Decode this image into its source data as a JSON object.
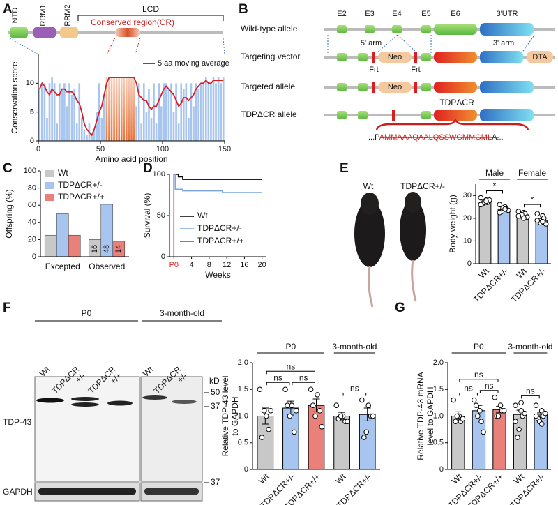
{
  "panel_labels": [
    "A",
    "B",
    "C",
    "D",
    "E",
    "F",
    "G"
  ],
  "domain_diagram": {
    "domains": [
      "NTD",
      "RRM1",
      "RRM2"
    ],
    "lcd": "LCD",
    "conserved_region": "Conserved region(CR)"
  },
  "targeting": {
    "exons": [
      "E2",
      "E3",
      "E4",
      "E5",
      "E6",
      "3'UTR"
    ],
    "rows": [
      "Wild-type allele",
      "Targeting vector",
      "Targeted allele",
      "TDPΔCR allele"
    ],
    "arms": [
      "5' arm",
      "3' arm"
    ],
    "neo": "Neo",
    "frt": "Frt",
    "dta": "DTA",
    "cr_label": "TDPΔCR",
    "sequence": [
      "...P",
      "AMMAAAQAALQSSWGMMGML",
      "A..."
    ]
  },
  "mice": {
    "labels": [
      "Wt",
      "TDPΔCR+/-"
    ]
  },
  "blot": {
    "groups": [
      "P0",
      "3-month-old"
    ],
    "lanes": [
      [
        "Wt"
      ],
      [
        "TDPΔCR",
        "+/-"
      ],
      [
        "TDPΔCR",
        "+/+"
      ],
      [
        "Wt"
      ],
      [
        "TDPΔCR",
        "+/-"
      ]
    ],
    "unit": "kD",
    "markers": [
      50,
      37
    ],
    "gapdh_marker": 37,
    "proteins": [
      "TDP-43",
      "GAPDH"
    ]
  },
  "chart_data": [
    {
      "type": "barline",
      "xlabel": "Amino acid position",
      "ylabel": "Conservation score",
      "x": [
        1,
        3,
        5,
        7,
        9,
        11,
        13,
        15,
        17,
        19,
        21,
        23,
        25,
        27,
        29,
        31,
        33,
        35,
        37,
        39,
        41,
        43,
        45,
        47,
        49,
        51,
        53,
        55,
        57,
        59,
        61,
        63,
        65,
        67,
        69,
        71,
        73,
        75,
        77,
        79,
        81,
        83,
        85,
        87,
        89,
        91,
        93,
        95,
        97,
        99,
        101,
        103,
        105,
        107,
        109,
        111,
        113,
        115,
        117,
        119,
        121,
        123,
        125,
        127,
        129,
        131,
        133,
        135,
        137,
        139,
        141,
        143,
        145,
        147,
        149
      ],
      "series": [
        {
          "color": "#a8c5f0",
          "values": [
            9,
            10,
            10,
            4,
            10,
            11,
            10,
            3,
            10,
            9,
            10,
            6,
            10,
            8,
            9,
            3,
            10,
            4,
            2,
            1,
            3,
            1,
            2,
            5,
            10,
            4,
            8,
            11,
            11,
            11,
            11,
            11,
            11,
            11,
            11,
            11,
            11,
            11,
            11,
            6,
            10,
            3,
            10,
            5,
            9,
            4,
            10,
            3,
            10,
            6,
            10,
            10,
            9,
            10,
            5,
            10,
            3,
            10,
            9,
            10,
            4,
            10,
            6,
            10,
            9,
            10,
            10,
            11,
            10,
            10,
            11,
            10,
            11,
            10,
            11
          ]
        },
        {
          "name": "5 aa moving average",
          "color": "#d0202a",
          "values": [
            9,
            10,
            9.5,
            8.5,
            8,
            9,
            8.5,
            8,
            8,
            9,
            9,
            8.5,
            8.5,
            8.5,
            8,
            7,
            6.5,
            5,
            3,
            2,
            1.5,
            1,
            2,
            3.5,
            5,
            6,
            8,
            10,
            11,
            11,
            11,
            11,
            11,
            11,
            11,
            11,
            11,
            11,
            11,
            10,
            8,
            7.5,
            7,
            7,
            6,
            5.5,
            6,
            6,
            7,
            8,
            9,
            9.5,
            9,
            8.5,
            8,
            7,
            6,
            6.5,
            7.5,
            7.5,
            7,
            7.5,
            8,
            9,
            9.5,
            10,
            10,
            10.5,
            10,
            10,
            10.5,
            10.5,
            10.5,
            10.5,
            10.5
          ]
        }
      ],
      "highlight": {
        "xlim": [
          54,
          78
        ],
        "color": "#e8743c"
      },
      "xlim": [
        0,
        150
      ],
      "ylim": [
        0,
        15
      ],
      "xticks": [
        0,
        50,
        100,
        150
      ],
      "yticks": [
        0,
        5,
        10
      ]
    },
    {
      "type": "bar",
      "ylabel": "Offspring (%)",
      "categories": [
        "Excepted",
        "Observed"
      ],
      "series": [
        {
          "name": "Wt",
          "color": "#c8c8c8",
          "values": [
            25,
            20
          ],
          "counts": [
            null,
            16
          ]
        },
        {
          "name": "TDPΔCR+/-",
          "color": "#a8c5f0",
          "values": [
            50,
            61
          ],
          "counts": [
            null,
            48
          ]
        },
        {
          "name": "TDPΔCR+/+",
          "color": "#e9807a",
          "values": [
            25,
            18
          ],
          "counts": [
            null,
            14
          ]
        }
      ],
      "ylim": [
        0,
        100
      ],
      "yticks": [
        0,
        20,
        40,
        60,
        80,
        100
      ],
      "legend": "upper-left"
    },
    {
      "type": "step",
      "xlabel": "Weeks",
      "ylabel": "Survival (%)",
      "series": [
        {
          "name": "Wt",
          "color": "#000000",
          "x": [
            0,
            1,
            1,
            2,
            2,
            20
          ],
          "values": [
            100,
            100,
            97,
            97,
            94,
            94
          ]
        },
        {
          "name": "TDPΔCR+/-",
          "color": "#7aa6e0",
          "x": [
            0,
            0.3,
            0.3,
            2,
            2,
            11,
            11,
            20
          ],
          "values": [
            100,
            100,
            82,
            82,
            80,
            80,
            78,
            78
          ]
        },
        {
          "name": "TDPΔCR+/+",
          "color": "#e02020",
          "x": [
            0,
            0
          ],
          "values": [
            100,
            0
          ]
        }
      ],
      "xlim": [
        -1,
        21
      ],
      "ylim": [
        0,
        100
      ],
      "xticks": [
        {
          "value": 0,
          "label": "P0",
          "color": "#e02020"
        },
        4,
        8,
        12,
        16,
        20
      ],
      "yticks": [
        0,
        50,
        100
      ],
      "legend": "center-right"
    },
    {
      "type": "dotbar",
      "ylabel": "Body weight (g)",
      "groups": [
        {
          "label": "Male",
          "categories": [
            "Wt",
            "TDPΔCR+/-"
          ],
          "colors": [
            "#c8c8c8",
            "#a8c5f0"
          ],
          "values": [
            27,
            24
          ],
          "errors": [
            0.5,
            0.5
          ],
          "points": [
            [
              29,
              28,
              27,
              26.5,
              27,
              28,
              26,
              27.5
            ],
            [
              26,
              25,
              24,
              23,
              24.5,
              23.5,
              22.5,
              24
            ]
          ],
          "comparisons": [
            {
              "label": "*",
              "pair": [
                "Wt",
                "TDPΔCR+/-"
              ]
            }
          ]
        },
        {
          "label": "Female",
          "categories": [
            "Wt",
            "TDPΔCR+/-"
          ],
          "colors": [
            "#c8c8c8",
            "#a8c5f0"
          ],
          "values": [
            21.5,
            19
          ],
          "errors": [
            0.4,
            0.6
          ],
          "points": [
            [
              23,
              22.5,
              22,
              21,
              21.5,
              20.5,
              21,
              20
            ],
            [
              22,
              21,
              20,
              19,
              18,
              17.5,
              19,
              18.5
            ]
          ],
          "comparisons": [
            {
              "label": "*",
              "pair": [
                "Wt",
                "TDPΔCR+/-"
              ]
            }
          ]
        }
      ],
      "ylim": [
        0,
        35
      ],
      "yticks": [
        0,
        10,
        20,
        30
      ]
    },
    {
      "type": "dotbar",
      "ylabel": [
        "Relative TDP-43 level",
        "to GAPDH"
      ],
      "groups": [
        {
          "label": "P0",
          "categories": [
            "Wt",
            "TDPΔCR+/-",
            "TDPΔCR+/+"
          ],
          "colors": [
            "#c8c8c8",
            "#a8c5f0",
            "#e9807a"
          ],
          "values": [
            1.0,
            1.15,
            1.2
          ],
          "errors": [
            0.15,
            0.13,
            0.12
          ],
          "points": [
            [
              1.5,
              1.0,
              0.75,
              0.6,
              1.1,
              1.1
            ],
            [
              1.5,
              1.2,
              0.7,
              1.2,
              1.0,
              1.1
            ],
            [
              1.5,
              1.4,
              1.1,
              1.2,
              1.0,
              0.8
            ]
          ],
          "comparisons": [
            {
              "label": "ns",
              "pair": [
                "Wt",
                "TDPΔCR+/+"
              ]
            },
            {
              "label": "ns",
              "pair": [
                "Wt",
                "TDPΔCR+/-"
              ]
            },
            {
              "label": "ns",
              "pair": [
                "TDPΔCR+/-",
                "TDPΔCR+/+"
              ]
            }
          ]
        },
        {
          "label": "3-month-old",
          "categories": [
            "Wt",
            "TDPΔCR+/-"
          ],
          "colors": [
            "#c8c8c8",
            "#a8c5f0"
          ],
          "values": [
            1.0,
            1.03
          ],
          "errors": [
            0.07,
            0.12
          ],
          "points": [
            [
              1.2,
              1.0,
              0.9,
              0.95,
              1.0,
              0.9
            ],
            [
              1.3,
              1.2,
              1.0,
              0.6,
              0.7,
              1.0
            ]
          ],
          "comparisons": [
            {
              "label": "ns",
              "pair": [
                "Wt",
                "TDPΔCR+/-"
              ]
            }
          ]
        }
      ],
      "ylim": [
        0,
        2
      ],
      "yticks": [
        0,
        0.5,
        {
          "value": 1,
          "label": "1.0"
        },
        1.5,
        {
          "value": 2,
          "label": "2.0"
        }
      ]
    },
    {
      "type": "dotbar",
      "ylabel": [
        "Relative TDP-43 mRNA",
        "level to GAPDH"
      ],
      "groups": [
        {
          "label": "P0",
          "categories": [
            "Wt",
            "TDPΔCR+/-",
            "TDPΔCR+/+"
          ],
          "colors": [
            "#c8c8c8",
            "#a8c5f0",
            "#e9807a"
          ],
          "values": [
            1.0,
            1.1,
            1.12
          ],
          "errors": [
            0.08,
            0.1,
            0.06
          ],
          "points": [
            [
              1.3,
              1.0,
              0.9,
              0.9,
              1.0,
              0.95
            ],
            [
              1.3,
              1.1,
              0.9,
              1.2,
              1.0,
              0.7
            ],
            [
              1.35,
              1.2,
              1.1,
              1.0,
              1.0,
              1.1
            ]
          ],
          "comparisons": [
            {
              "label": "ns",
              "pair": [
                "Wt",
                "TDPΔCR+/+"
              ]
            },
            {
              "label": "ns",
              "pair": [
                "Wt",
                "TDPΔCR+/-"
              ]
            },
            {
              "label": "ns",
              "pair": [
                "TDPΔCR+/-",
                "TDPΔCR+/+"
              ]
            }
          ]
        },
        {
          "label": "3-month-old",
          "categories": [
            "Wt",
            "TDPΔCR+/-"
          ],
          "colors": [
            "#c8c8c8",
            "#a8c5f0"
          ],
          "values": [
            1.03,
            1.02
          ],
          "errors": [
            0.08,
            0.04
          ],
          "points": [
            [
              1.2,
              1.1,
              1.0,
              0.6,
              0.75,
              1.05,
              0.9,
              1.25
            ],
            [
              1.2,
              1.1,
              1.0,
              0.95,
              0.9,
              1.05,
              1.0,
              0.85
            ]
          ],
          "comparisons": [
            {
              "label": "ns",
              "pair": [
                "Wt",
                "TDPΔCR+/-"
              ]
            }
          ]
        }
      ],
      "ylim": [
        0,
        2
      ],
      "yticks": [
        0,
        0.5,
        {
          "value": 1,
          "label": "1.0"
        },
        1.5,
        {
          "value": 2,
          "label": "2.0"
        }
      ]
    }
  ]
}
